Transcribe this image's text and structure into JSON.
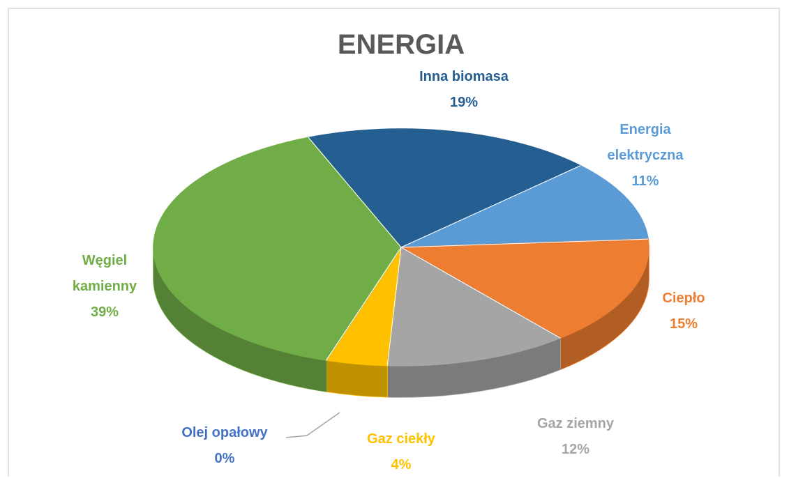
{
  "chart_data": {
    "type": "pie",
    "title": "ENERGIA",
    "categories": [
      "Inna biomasa",
      "Energia elektryczna",
      "Ciepło",
      "Gaz ziemny",
      "Gaz ciekły",
      "Olej opałowy",
      "Węgiel kamienny"
    ],
    "values": [
      19,
      11,
      15,
      12,
      4,
      0,
      39
    ],
    "value_labels": [
      "19%",
      "11%",
      "15%",
      "12%",
      "4%",
      "0%",
      "39%"
    ],
    "colors": [
      "#255e91",
      "#5b9bd5",
      "#ed7d31",
      "#a5a5a5",
      "#ffc000",
      "#4472c4",
      "#70ad47"
    ]
  }
}
